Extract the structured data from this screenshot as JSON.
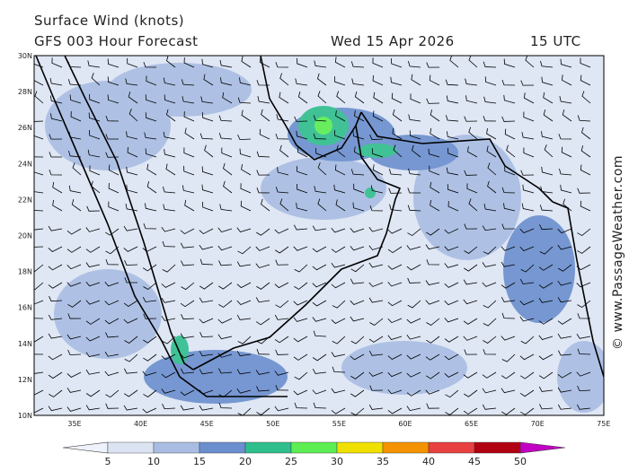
{
  "header": {
    "title": "Surface Wind (knots)",
    "subtitle": "GFS 003 Hour Forecast",
    "date": "Wed 15 Apr 2026",
    "time": "15 UTC"
  },
  "map": {
    "lat_labels": [
      "30N",
      "28N",
      "26N",
      "24N",
      "22N",
      "20N",
      "18N",
      "16N",
      "14N",
      "12N",
      "10N"
    ],
    "lon_labels": [
      "35E",
      "40E",
      "45E",
      "50E",
      "55E",
      "60E",
      "65E",
      "70E",
      "75E"
    ]
  },
  "colorbar": {
    "ticks": [
      5,
      10,
      15,
      20,
      25,
      30,
      35,
      40,
      45,
      50
    ],
    "colors": [
      "#eef2fa",
      "#dce4f3",
      "#a9bde3",
      "#6b8fce",
      "#2fbf8c",
      "#5cee52",
      "#f0e000",
      "#f59200",
      "#e84040",
      "#b00012",
      "#c400c4"
    ]
  },
  "watermark": "© www.PassageWeather.com"
}
